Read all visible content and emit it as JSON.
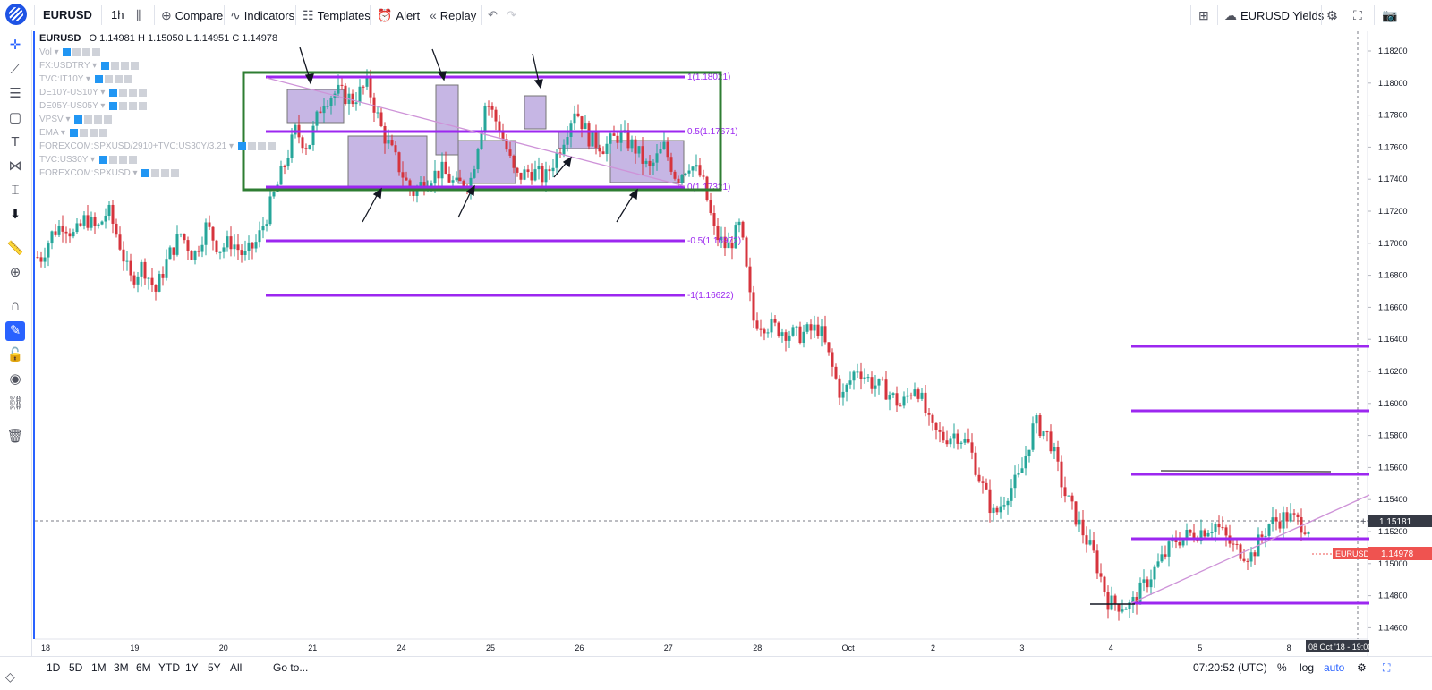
{
  "toolbar": {
    "symbol": "EURUSD",
    "interval": "1h",
    "compare": "Compare",
    "indicators": "Indicators",
    "templates": "Templates",
    "alert": "Alert",
    "replay": "Replay",
    "layout_name": "EURUSD Yields"
  },
  "legend": {
    "symbol": "EURUSD",
    "ohlc": "O 1.14981   H 1.15050   L 1.14951   C 1.14978",
    "indicators": [
      "Vol",
      "FX:USDTRY",
      "TVC:IT10Y",
      "DE10Y-US10Y",
      "DE05Y-US05Y",
      "VPSV",
      "EMA",
      "FOREXCOM:SPXUSD/2910+TVC:US30Y/3.21",
      "TVC:US30Y",
      "FOREXCOM:SPXUSD"
    ]
  },
  "price_axis": {
    "labels": [
      "1.18200",
      "1.18000",
      "1.17800",
      "1.17600",
      "1.17400",
      "1.17200",
      "1.17000",
      "1.16800",
      "1.16600",
      "1.16400",
      "1.16200",
      "1.16000",
      "1.15800",
      "1.15600",
      "1.15400",
      "1.15200",
      "1.15000",
      "1.14800",
      "1.14600"
    ],
    "crosshair_label": "1.15181",
    "last_price_label": "1.14978",
    "last_price_tag": "EURUSD"
  },
  "time_axis": {
    "labels": [
      "18",
      "19",
      "20",
      "21",
      "24",
      "25",
      "26",
      "27",
      "28",
      "Oct",
      "2",
      "3",
      "4",
      "5",
      "8"
    ],
    "crosshair_label": "08 Oct '18 - 19:00"
  },
  "fib_labels": [
    "1(1.18021)",
    "0.5(1.17671)",
    "0(1.17321)",
    "-0.5(1.16972)",
    "-1(1.16622)"
  ],
  "bottom": {
    "ranges": [
      "1D",
      "5D",
      "1M",
      "3M",
      "6M",
      "YTD",
      "1Y",
      "5Y",
      "All"
    ],
    "goto": "Go to...",
    "time": "07:20:52 (UTC)",
    "percent": "%",
    "log": "log",
    "auto": "auto"
  },
  "colors": {
    "up": "#26a69a",
    "down": "#d6343d",
    "fib": "#9c27f0",
    "range_box": "#2e7d32",
    "accent": "#2962ff",
    "last_price": "#ef5350"
  },
  "chart_data": {
    "type": "candlestick",
    "symbol": "EURUSD",
    "interval": "1h",
    "ylim": [
      1.1455,
      1.1825
    ],
    "last_close": 1.14978,
    "path": [
      [
        "18",
        1.169
      ],
      [
        "18",
        1.1705
      ],
      [
        "18",
        1.1712
      ],
      [
        "18",
        1.1703
      ],
      [
        "18",
        1.1715
      ],
      [
        "18",
        1.1707
      ],
      [
        "18",
        1.172
      ],
      [
        "18",
        1.17
      ],
      [
        "19",
        1.1675
      ],
      [
        "19",
        1.1685
      ],
      [
        "19",
        1.1668
      ],
      [
        "19",
        1.169
      ],
      [
        "19",
        1.1705
      ],
      [
        "19",
        1.169
      ],
      [
        "19",
        1.171
      ],
      [
        "20",
        1.1695
      ],
      [
        "20",
        1.17
      ],
      [
        "20",
        1.169
      ],
      [
        "20",
        1.17
      ],
      [
        "20",
        1.1722
      ],
      [
        "20",
        1.1745
      ],
      [
        "20",
        1.177
      ],
      [
        "21",
        1.176
      ],
      [
        "21",
        1.179
      ],
      [
        "21",
        1.1795
      ],
      [
        "21",
        1.179
      ],
      [
        "21",
        1.18
      ],
      [
        "21",
        1.177
      ],
      [
        "24",
        1.175
      ],
      [
        "24",
        1.173
      ],
      [
        "24",
        1.174
      ],
      [
        "24",
        1.1745
      ],
      [
        "24",
        1.1735
      ],
      [
        "24",
        1.174
      ],
      [
        "25",
        1.179
      ],
      [
        "25",
        1.177
      ],
      [
        "25",
        1.174
      ],
      [
        "25",
        1.1745
      ],
      [
        "25",
        1.174
      ],
      [
        "25",
        1.176
      ],
      [
        "26",
        1.1785
      ],
      [
        "26",
        1.1765
      ],
      [
        "26",
        1.176
      ],
      [
        "26",
        1.1768
      ],
      [
        "26",
        1.176
      ],
      [
        "26",
        1.1745
      ],
      [
        "27",
        1.176
      ],
      [
        "27",
        1.174
      ],
      [
        "27",
        1.175
      ],
      [
        "27",
        1.174
      ],
      [
        "27",
        1.1705
      ],
      [
        "27",
        1.1695
      ],
      [
        "27",
        1.171
      ],
      [
        "28",
        1.165
      ],
      [
        "28",
        1.1645
      ],
      [
        "28",
        1.164
      ],
      [
        "28",
        1.1645
      ],
      [
        "Oct",
        1.16
      ],
      [
        "Oct",
        1.162
      ],
      [
        "Oct",
        1.161
      ],
      [
        "Oct",
        1.1605
      ],
      [
        "Oct",
        1.1595
      ],
      [
        "Oct",
        1.161
      ],
      [
        "2",
        1.158
      ],
      [
        "2",
        1.1575
      ],
      [
        "2",
        1.1578
      ],
      [
        "2",
        1.157
      ],
      [
        "2",
        1.1545
      ],
      [
        "2",
        1.1525
      ],
      [
        "2",
        1.154
      ],
      [
        "3",
        1.155
      ],
      [
        "3",
        1.1585
      ],
      [
        "3",
        1.1575
      ],
      [
        "3",
        1.154
      ],
      [
        "3",
        1.152
      ],
      [
        "3",
        1.15
      ],
      [
        "4",
        1.147
      ],
      [
        "4",
        1.1468
      ],
      [
        "4",
        1.149
      ],
      [
        "4",
        1.151
      ],
      [
        "5",
        1.1515
      ],
      [
        "5",
        1.152
      ],
      [
        "5",
        1.1505
      ],
      [
        "5",
        1.15
      ],
      [
        "5",
        1.152
      ],
      [
        "8",
        1.1525
      ],
      [
        "8",
        1.1518
      ],
      [
        "8",
        1.151
      ],
      [
        "8",
        1.1498
      ]
    ]
  }
}
